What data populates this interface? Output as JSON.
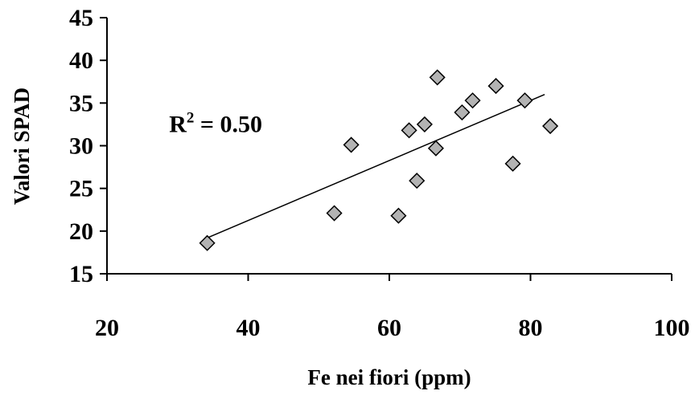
{
  "chart_data": {
    "type": "scatter",
    "title": "",
    "xlabel": "Fe nei fiori (ppm)",
    "ylabel": "Valori SPAD",
    "xlim": [
      20,
      100
    ],
    "ylim": [
      15,
      45
    ],
    "xticks": [
      20,
      40,
      60,
      80,
      100
    ],
    "yticks": [
      15,
      20,
      25,
      30,
      35,
      40,
      45
    ],
    "grid": false,
    "points": [
      {
        "x": 34.2,
        "y": 18.6
      },
      {
        "x": 52.2,
        "y": 22.1
      },
      {
        "x": 54.6,
        "y": 30.1
      },
      {
        "x": 61.3,
        "y": 21.8
      },
      {
        "x": 62.8,
        "y": 31.8
      },
      {
        "x": 63.9,
        "y": 25.9
      },
      {
        "x": 65.0,
        "y": 32.5
      },
      {
        "x": 66.6,
        "y": 29.7
      },
      {
        "x": 66.8,
        "y": 38.0
      },
      {
        "x": 70.3,
        "y": 33.9
      },
      {
        "x": 71.8,
        "y": 35.3
      },
      {
        "x": 75.1,
        "y": 37.0
      },
      {
        "x": 77.5,
        "y": 27.9
      },
      {
        "x": 79.2,
        "y": 35.3
      },
      {
        "x": 82.8,
        "y": 32.3
      }
    ],
    "trendline": {
      "x": [
        34.2,
        82.0
      ],
      "y": [
        19.2,
        36.0
      ]
    },
    "annotation": {
      "text": "R",
      "superscript": "2",
      "rest": " = 0.50",
      "x": 28.8,
      "y": 31.6
    },
    "marker_color": "#b3b3b3",
    "marker_stroke": "#000000"
  }
}
